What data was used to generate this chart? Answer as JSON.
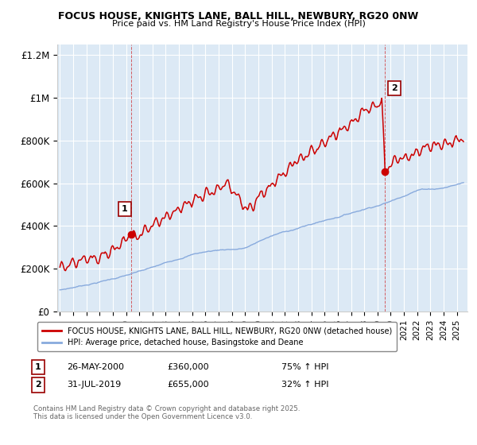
{
  "title_line1": "FOCUS HOUSE, KNIGHTS LANE, BALL HILL, NEWBURY, RG20 0NW",
  "title_line2": "Price paid vs. HM Land Registry's House Price Index (HPI)",
  "ylabel_ticks": [
    "£0",
    "£200K",
    "£400K",
    "£600K",
    "£800K",
    "£1M",
    "£1.2M"
  ],
  "ytick_vals": [
    0,
    200000,
    400000,
    600000,
    800000,
    1000000,
    1200000
  ],
  "ylim": [
    0,
    1250000
  ],
  "xlim_start": 1994.8,
  "xlim_end": 2025.8,
  "legend_line1": "FOCUS HOUSE, KNIGHTS LANE, BALL HILL, NEWBURY, RG20 0NW (detached house)",
  "legend_line2": "HPI: Average price, detached house, Basingstoke and Deane",
  "red_color": "#cc0000",
  "blue_color": "#88aadd",
  "purchase1_date": 2000.4,
  "purchase1_price": 360000,
  "purchase2_date": 2019.58,
  "purchase2_price": 655000,
  "annotation1": "1",
  "annotation2": "2",
  "copyright": "Contains HM Land Registry data © Crown copyright and database right 2025.\nThis data is licensed under the Open Government Licence v3.0.",
  "background_color": "#ffffff",
  "plot_bg_color": "#dce9f5"
}
